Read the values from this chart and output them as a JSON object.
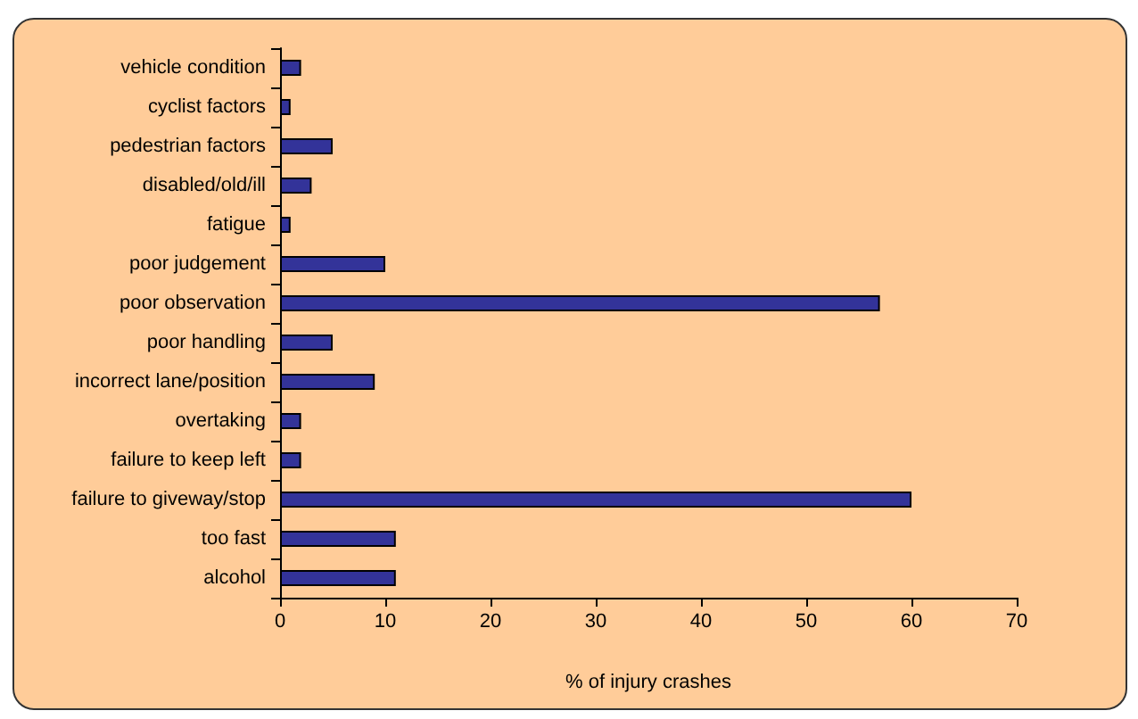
{
  "chart_data": {
    "type": "bar",
    "orientation": "horizontal",
    "xlabel": "% of injury crashes",
    "categories": [
      "vehicle condition",
      "cyclist factors",
      "pedestrian factors",
      "disabled/old/ill",
      "fatigue",
      "poor judgement",
      "poor observation",
      "poor handling",
      "incorrect lane/position",
      "overtaking",
      "failure to keep left",
      "failure to giveway/stop",
      "too fast",
      "alcohol"
    ],
    "values": [
      2,
      1,
      5,
      3,
      1,
      10,
      57,
      5,
      9,
      2,
      2,
      60,
      11,
      11
    ],
    "color": "#333399",
    "xlim": [
      0,
      70
    ],
    "xticks": [
      0,
      10,
      20,
      30,
      40,
      50,
      60,
      70
    ],
    "grid": false
  }
}
